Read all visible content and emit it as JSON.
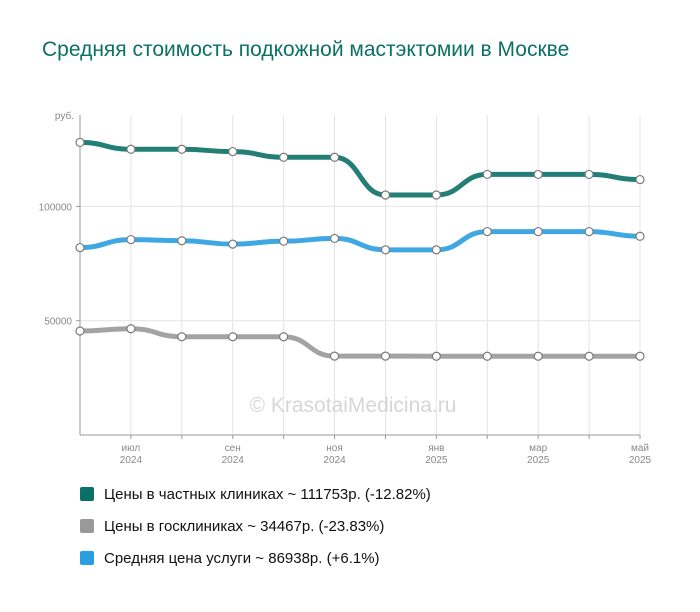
{
  "title": "Средняя стоимость подкожной мастэктомии в Москве",
  "watermark": "© KrasotaiMedicina.ru",
  "chart_data": {
    "type": "line",
    "y_unit": "руб.",
    "ylim": [
      0,
      140000
    ],
    "yticks": [
      {
        "value": 100000,
        "label": "100000"
      },
      {
        "value": 50000,
        "label": "50000"
      }
    ],
    "grid": true,
    "smooth": true,
    "x": [
      "2024-06",
      "2024-07",
      "2024-08",
      "2024-09",
      "2024-10",
      "2024-11",
      "2024-12",
      "2025-01",
      "2025-02",
      "2025-03",
      "2025-04",
      "2025-05"
    ],
    "x_tick_labels": [
      {
        "index": 1,
        "line1": "июл",
        "line2": "2024"
      },
      {
        "index": 3,
        "line1": "сен",
        "line2": "2024"
      },
      {
        "index": 5,
        "line1": "ноя",
        "line2": "2024"
      },
      {
        "index": 7,
        "line1": "янв",
        "line2": "2025"
      },
      {
        "index": 9,
        "line1": "мар",
        "line2": "2025"
      },
      {
        "index": 11,
        "line1": "май",
        "line2": "2025"
      }
    ],
    "series": [
      {
        "name": "Цены в частных клиниках",
        "color": "#0b7167",
        "values": [
          128000,
          125000,
          125000,
          124000,
          121500,
          121500,
          105000,
          105000,
          114000,
          114000,
          114000,
          111753
        ]
      },
      {
        "name": "Средняя цена услуги",
        "color": "#2a9fe0",
        "values": [
          82000,
          85500,
          85000,
          83500,
          84800,
          86000,
          81000,
          81000,
          89000,
          89000,
          89000,
          86938
        ]
      },
      {
        "name": "Цены в госклиниках",
        "color": "#999999",
        "values": [
          45500,
          46500,
          43000,
          43000,
          43000,
          34500,
          34500,
          34467,
          34467,
          34467,
          34467,
          34467
        ]
      }
    ]
  },
  "legend": [
    {
      "label": "Цены в частных клиниках ~ 111753р. (-12.82%)",
      "color": "#0b7167"
    },
    {
      "label": "Цены в госклиниках ~ 34467р. (-23.83%)",
      "color": "#999999"
    },
    {
      "label": "Средняя цена услуги ~ 86938р. (+6.1%)",
      "color": "#2a9fe0"
    }
  ]
}
